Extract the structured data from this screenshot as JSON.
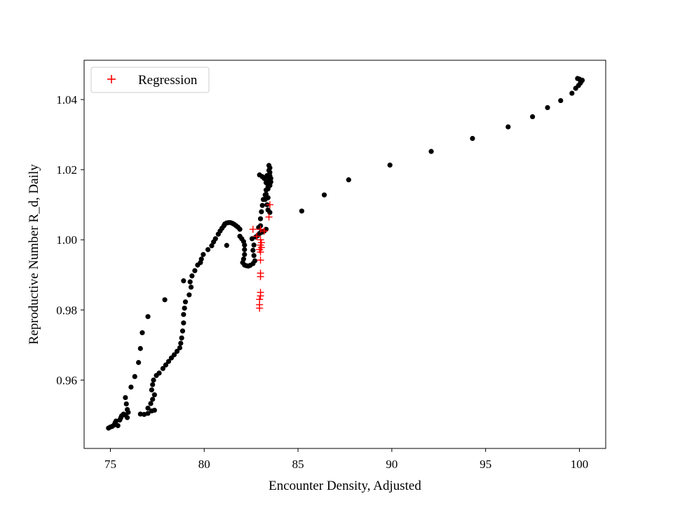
{
  "chart_data": {
    "type": "scatter",
    "title": "",
    "xlabel": "Encounter Density, Adjusted",
    "ylabel": "Reproductive Number R_d, Daily",
    "xlim": [
      73.6,
      101.4
    ],
    "ylim": [
      0.9405,
      1.0512
    ],
    "xticks": [
      75,
      80,
      85,
      90,
      95,
      100
    ],
    "yticks": [
      0.96,
      0.98,
      1.0,
      1.02,
      1.04
    ],
    "xtick_labels": [
      "75",
      "80",
      "85",
      "90",
      "95",
      "100"
    ],
    "ytick_labels": [
      "0.96",
      "0.98",
      "1.00",
      "1.02",
      "1.04"
    ],
    "grid": false,
    "legend": {
      "position": "top-left",
      "entries": [
        {
          "label": "Regression",
          "marker": "+",
          "color": "#ff0000"
        }
      ]
    },
    "series": [
      {
        "marker": "circle",
        "color": "#000000",
        "points": [
          [
            74.9,
            0.9463
          ],
          [
            75.0,
            0.9466
          ],
          [
            75.1,
            0.9468
          ],
          [
            75.2,
            0.9472
          ],
          [
            75.25,
            0.9478
          ],
          [
            75.3,
            0.9483
          ],
          [
            75.4,
            0.947
          ],
          [
            75.5,
            0.9486
          ],
          [
            75.55,
            0.9492
          ],
          [
            75.6,
            0.9498
          ],
          [
            75.7,
            0.9503
          ],
          [
            75.8,
            0.95
          ],
          [
            75.9,
            0.9493
          ],
          [
            75.95,
            0.9508
          ],
          [
            75.9,
            0.9516
          ],
          [
            75.85,
            0.9532
          ],
          [
            75.8,
            0.955
          ],
          [
            76.1,
            0.958
          ],
          [
            76.3,
            0.961
          ],
          [
            76.5,
            0.965
          ],
          [
            76.6,
            0.969
          ],
          [
            76.7,
            0.9735
          ],
          [
            77.0,
            0.9781
          ],
          [
            77.9,
            0.9829
          ],
          [
            76.6,
            0.9503
          ],
          [
            76.8,
            0.9502
          ],
          [
            77.0,
            0.9505
          ],
          [
            77.2,
            0.9512
          ],
          [
            77.35,
            0.9514
          ],
          [
            77.0,
            0.952
          ],
          [
            77.15,
            0.9533
          ],
          [
            77.25,
            0.9545
          ],
          [
            77.35,
            0.9558
          ],
          [
            77.2,
            0.9572
          ],
          [
            77.25,
            0.9587
          ],
          [
            77.3,
            0.96
          ],
          [
            77.45,
            0.9613
          ],
          [
            77.6,
            0.962
          ],
          [
            77.8,
            0.9633
          ],
          [
            77.95,
            0.9643
          ],
          [
            78.1,
            0.9653
          ],
          [
            78.25,
            0.9663
          ],
          [
            78.4,
            0.9672
          ],
          [
            78.55,
            0.9682
          ],
          [
            78.7,
            0.9692
          ],
          [
            78.75,
            0.9705
          ],
          [
            78.8,
            0.972
          ],
          [
            78.85,
            0.974
          ],
          [
            78.9,
            0.9763
          ],
          [
            78.9,
            0.9787
          ],
          [
            78.95,
            0.9805
          ],
          [
            79.0,
            0.9823
          ],
          [
            78.9,
            0.9883
          ],
          [
            79.2,
            0.9843
          ],
          [
            79.3,
            0.9865
          ],
          [
            79.25,
            0.988
          ],
          [
            79.35,
            0.9897
          ],
          [
            79.5,
            0.9912
          ],
          [
            79.65,
            0.9928
          ],
          [
            79.8,
            0.9935
          ],
          [
            79.85,
            0.9945
          ],
          [
            79.95,
            0.9958
          ],
          [
            80.2,
            0.9972
          ],
          [
            80.4,
            0.9983
          ],
          [
            80.5,
            0.9994
          ],
          [
            80.6,
            1.0003
          ],
          [
            80.75,
            1.0016
          ],
          [
            80.85,
            1.0025
          ],
          [
            80.95,
            1.0033
          ],
          [
            81.05,
            1.004
          ],
          [
            81.1,
            1.0045
          ],
          [
            81.2,
            1.0048
          ],
          [
            81.3,
            1.0049
          ],
          [
            81.4,
            1.0049
          ],
          [
            81.5,
            1.0047
          ],
          [
            81.6,
            1.0044
          ],
          [
            81.7,
            1.004
          ],
          [
            81.8,
            1.0036
          ],
          [
            81.9,
            1.003
          ],
          [
            81.2,
            0.9984
          ],
          [
            81.9,
            1.001
          ],
          [
            82.0,
            1.0003
          ],
          [
            82.1,
            0.9995
          ],
          [
            82.15,
            0.9985
          ],
          [
            82.15,
            0.9972
          ],
          [
            82.15,
            0.9958
          ],
          [
            82.1,
            0.9945
          ],
          [
            82.05,
            0.9935
          ],
          [
            82.15,
            0.9928
          ],
          [
            82.25,
            0.9926
          ],
          [
            82.35,
            0.9925
          ],
          [
            82.45,
            0.9927
          ],
          [
            82.6,
            0.9932
          ],
          [
            82.7,
            0.994
          ],
          [
            82.65,
            0.9955
          ],
          [
            82.6,
            0.997
          ],
          [
            82.65,
            0.9985
          ],
          [
            82.55,
            1.0003
          ],
          [
            82.75,
            1.0008
          ],
          [
            82.85,
            1.0012
          ],
          [
            82.95,
            1.0018
          ],
          [
            83.05,
            1.0023
          ],
          [
            83.1,
            1.0022
          ],
          [
            83.2,
            1.0025
          ],
          [
            83.3,
            1.003
          ],
          [
            82.9,
            1.0035
          ],
          [
            83.0,
            1.004
          ],
          [
            83.0,
            1.006
          ],
          [
            83.05,
            1.008
          ],
          [
            83.1,
            1.0098
          ],
          [
            83.15,
            1.0115
          ],
          [
            83.25,
            1.0128
          ],
          [
            83.3,
            1.0142
          ],
          [
            83.4,
            1.0152
          ],
          [
            83.45,
            1.0162
          ],
          [
            83.45,
            1.0172
          ],
          [
            83.5,
            1.0182
          ],
          [
            83.5,
            1.0192
          ],
          [
            83.45,
            1.0198
          ],
          [
            83.5,
            1.0205
          ],
          [
            83.45,
            1.0212
          ],
          [
            83.55,
            1.0165
          ],
          [
            83.5,
            1.0155
          ],
          [
            83.4,
            1.0145
          ],
          [
            83.3,
            1.013
          ],
          [
            83.25,
            1.0115
          ],
          [
            83.35,
            1.01
          ],
          [
            83.4,
            1.0085
          ],
          [
            83.5,
            1.0078
          ],
          [
            83.2,
            1.0175
          ],
          [
            83.35,
            1.0183
          ],
          [
            83.3,
            1.0163
          ],
          [
            83.1,
            1.018
          ],
          [
            82.95,
            1.0185
          ],
          [
            83.4,
            1.012
          ],
          [
            83.55,
            1.0175
          ],
          [
            85.2,
            1.0082
          ],
          [
            86.4,
            1.0128
          ],
          [
            87.7,
            1.0171
          ],
          [
            89.9,
            1.0213
          ],
          [
            92.1,
            1.0252
          ],
          [
            94.3,
            1.0289
          ],
          [
            96.2,
            1.0322
          ],
          [
            97.5,
            1.0351
          ],
          [
            98.3,
            1.0377
          ],
          [
            99.0,
            1.0397
          ],
          [
            99.6,
            1.0418
          ],
          [
            99.8,
            1.0432
          ],
          [
            99.95,
            1.044
          ],
          [
            100.05,
            1.0447
          ],
          [
            100.1,
            1.0452
          ],
          [
            100.15,
            1.0455
          ],
          [
            100.0,
            1.0458
          ],
          [
            99.9,
            1.046
          ]
        ]
      },
      {
        "name": "Regression",
        "marker": "+",
        "color": "#ff0000",
        "points": [
          [
            82.6,
            1.003
          ],
          [
            83.0,
            1.003
          ],
          [
            83.2,
            1.0025
          ],
          [
            82.8,
            1.001
          ],
          [
            83.0,
            1.0
          ],
          [
            83.05,
            0.9992
          ],
          [
            83.0,
            0.9985
          ],
          [
            83.05,
            0.9978
          ],
          [
            82.95,
            0.9972
          ],
          [
            83.0,
            0.9965
          ],
          [
            83.0,
            0.9942
          ],
          [
            83.0,
            0.9905
          ],
          [
            83.0,
            0.9895
          ],
          [
            83.0,
            0.985
          ],
          [
            83.0,
            0.984
          ],
          [
            82.95,
            0.983
          ],
          [
            82.95,
            0.9815
          ],
          [
            82.95,
            0.9805
          ],
          [
            83.45,
            1.0065
          ],
          [
            83.5,
            1.01
          ]
        ]
      }
    ]
  }
}
